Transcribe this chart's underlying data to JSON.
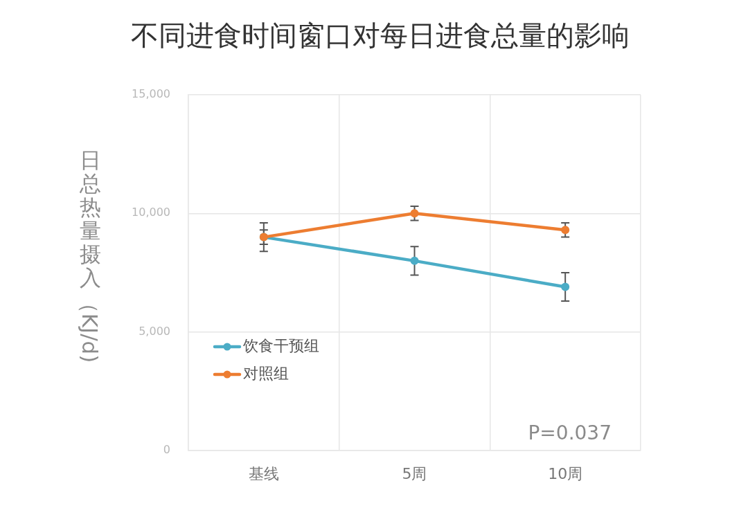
{
  "chart_data": {
    "type": "line",
    "title": "不同进食时间窗口对每日进食总量的影响",
    "ylabel": "日总热量摄入（KJ/d)",
    "categories": [
      "基线",
      "5周",
      "10周"
    ],
    "series": [
      {
        "name": "饮食干预组",
        "color": "#4bacc6",
        "values": [
          9000,
          8000,
          6900
        ],
        "errors": [
          600,
          600,
          600
        ]
      },
      {
        "name": "对照组",
        "color": "#ed7d31",
        "values": [
          9000,
          10000,
          9300
        ],
        "errors": [
          300,
          300,
          300
        ]
      }
    ],
    "ylim": [
      0,
      15000
    ],
    "yticks": [
      0,
      {
        "value": 5000,
        "label": "5,000"
      },
      {
        "value": 10000,
        "label": "10,000"
      },
      {
        "value": 15000,
        "label": "15,000"
      }
    ],
    "grid": true,
    "legend": "bottom left",
    "marker": "circle",
    "line_style": "solid",
    "annotations": [
      "P=0.037"
    ]
  }
}
